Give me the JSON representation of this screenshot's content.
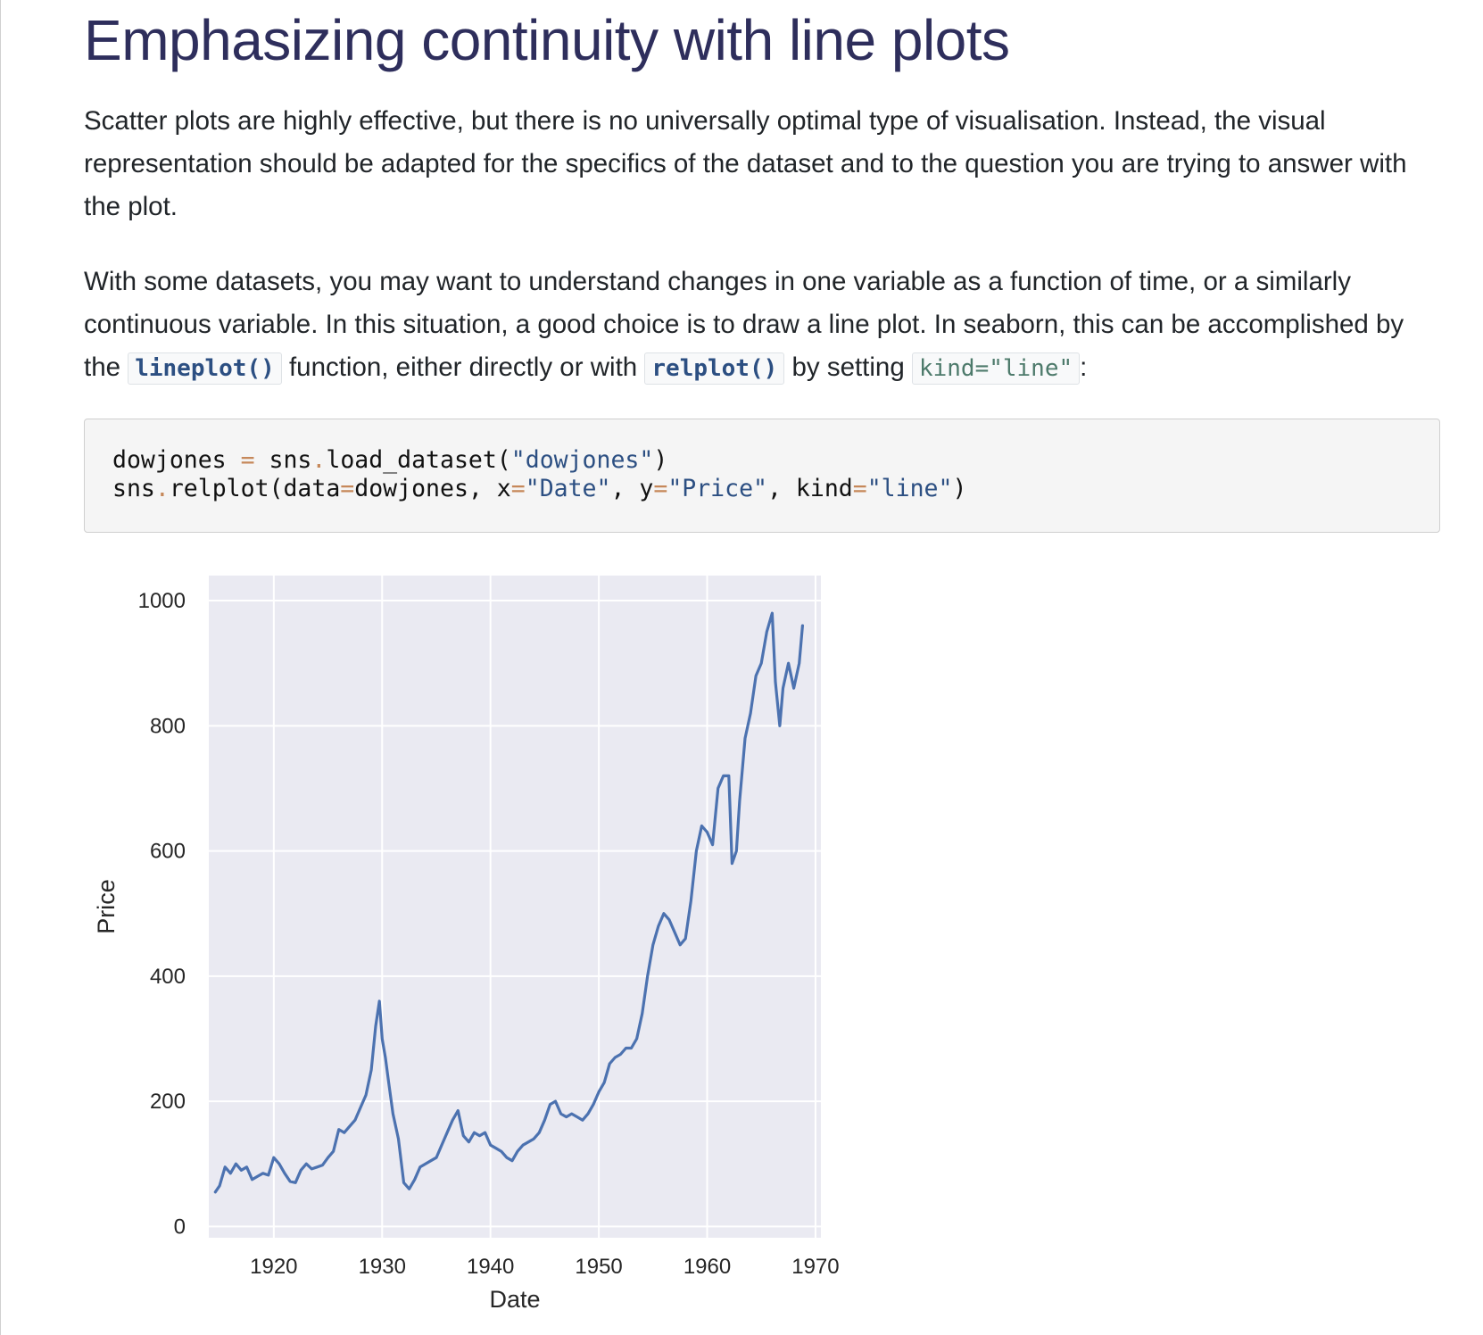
{
  "page": {
    "title": "Emphasizing continuity with line plots",
    "para1": "Scatter plots are highly effective, but there is no universally optimal type of visualisation. Instead, the visual representation should be adapted for the specifics of the dataset and to the question you are trying to answer with the plot.",
    "para2_a": "With some datasets, you may want to understand changes in one variable as a function of time, or a similarly continuous variable. In this situation, a good choice is to draw a line plot. In seaborn, this can be accomplished by the ",
    "code_lineplot": "lineplot()",
    "para2_b": " function, either directly or with ",
    "code_relplot": "relplot()",
    "para2_c": " by setting ",
    "code_kind": "kind=\"line\"",
    "para2_d": ":"
  },
  "code": {
    "l1_a": "dowjones ",
    "l1_op": "=",
    "l1_b": " sns",
    "l1_dot": ".",
    "l1_c": "load_dataset(",
    "l1_str": "\"dowjones\"",
    "l1_d": ")",
    "l2_a": "sns",
    "l2_dot": ".",
    "l2_b": "relplot(data",
    "l2_op1": "=",
    "l2_c": "dowjones, x",
    "l2_op2": "=",
    "l2_str1": "\"Date\"",
    "l2_d": ", y",
    "l2_op3": "=",
    "l2_str2": "\"Price\"",
    "l2_e": ", kind",
    "l2_op4": "=",
    "l2_str3": "\"line\"",
    "l2_f": ")"
  },
  "chart_data": {
    "type": "line",
    "title": "",
    "xlabel": "Date",
    "ylabel": "Price",
    "xlim": [
      1914.0,
      1970.5
    ],
    "ylim": [
      -18,
      1040
    ],
    "xticks": [
      1920,
      1930,
      1940,
      1950,
      1960,
      1970
    ],
    "yticks": [
      0,
      200,
      400,
      600,
      800,
      1000
    ],
    "grid": true,
    "background": "#eaeaf2",
    "line_color": "#4c72b0",
    "series": [
      {
        "x": [
          1914.6,
          1915.0,
          1915.5,
          1916.0,
          1916.5,
          1917.0,
          1917.5,
          1918.0,
          1918.5,
          1919.0,
          1919.5,
          1920.0,
          1920.5,
          1921.0,
          1921.5,
          1922.0,
          1922.5,
          1923.0,
          1923.5,
          1924.0,
          1924.5,
          1925.0,
          1925.5,
          1926.0,
          1926.5,
          1927.0,
          1927.5,
          1928.0,
          1928.5,
          1929.0,
          1929.4,
          1929.75,
          1930.0,
          1930.3,
          1930.6,
          1931.0,
          1931.5,
          1932.0,
          1932.5,
          1933.0,
          1933.5,
          1934.0,
          1934.5,
          1935.0,
          1935.5,
          1936.0,
          1936.5,
          1937.0,
          1937.5,
          1938.0,
          1938.5,
          1939.0,
          1939.5,
          1940.0,
          1940.5,
          1941.0,
          1941.5,
          1942.0,
          1942.5,
          1943.0,
          1943.5,
          1944.0,
          1944.5,
          1945.0,
          1945.5,
          1946.0,
          1946.5,
          1947.0,
          1947.5,
          1948.0,
          1948.5,
          1949.0,
          1949.5,
          1950.0,
          1950.5,
          1951.0,
          1951.5,
          1952.0,
          1952.5,
          1953.0,
          1953.5,
          1954.0,
          1954.5,
          1955.0,
          1955.5,
          1956.0,
          1956.5,
          1957.0,
          1957.5,
          1958.0,
          1958.5,
          1959.0,
          1959.5,
          1960.0,
          1960.5,
          1961.0,
          1961.5,
          1962.0,
          1962.3,
          1962.7,
          1963.0,
          1963.5,
          1964.0,
          1964.5,
          1965.0,
          1965.5,
          1966.0,
          1966.3,
          1966.7,
          1967.0,
          1967.5,
          1968.0,
          1968.5,
          1968.8
        ],
        "y": [
          55,
          65,
          95,
          85,
          100,
          90,
          95,
          75,
          80,
          85,
          82,
          110,
          100,
          85,
          72,
          70,
          90,
          100,
          92,
          95,
          98,
          110,
          120,
          155,
          150,
          160,
          170,
          190,
          210,
          250,
          320,
          360,
          300,
          270,
          230,
          180,
          140,
          70,
          60,
          75,
          95,
          100,
          105,
          110,
          130,
          150,
          170,
          185,
          145,
          135,
          150,
          145,
          150,
          130,
          125,
          120,
          110,
          105,
          120,
          130,
          135,
          140,
          150,
          170,
          195,
          200,
          180,
          175,
          180,
          175,
          170,
          180,
          195,
          215,
          230,
          260,
          270,
          275,
          285,
          285,
          300,
          340,
          400,
          450,
          480,
          500,
          490,
          470,
          450,
          460,
          520,
          600,
          640,
          630,
          610,
          700,
          720,
          720,
          580,
          600,
          680,
          780,
          820,
          880,
          900,
          950,
          980,
          870,
          800,
          860,
          900,
          860,
          900,
          960
        ]
      }
    ]
  }
}
